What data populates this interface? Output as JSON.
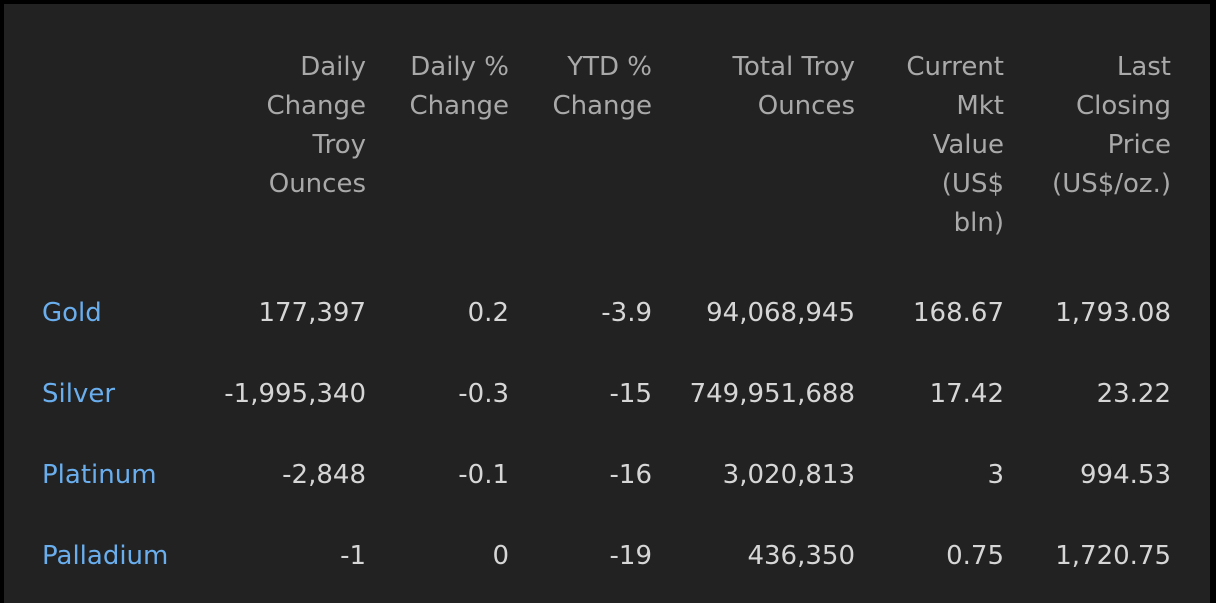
{
  "table": {
    "headers": [
      "",
      "Daily\nChange\nTroy\nOunces",
      "Daily %\nChange",
      "YTD %\nChange",
      "Total Troy\nOunces",
      "Current\nMkt\nValue\n(US$\nbln)",
      "Last\nClosing\nPrice\n(US$/oz.)"
    ],
    "rows": [
      {
        "metal": "Gold",
        "daily_change_oz": "177,397",
        "daily_pct": "0.2",
        "ytd_pct": "-3.9",
        "total_oz": "94,068,945",
        "mkt_value": "168.67",
        "last_price": "1,793.08"
      },
      {
        "metal": "Silver",
        "daily_change_oz": "-1,995,340",
        "daily_pct": "-0.3",
        "ytd_pct": "-15",
        "total_oz": "749,951,688",
        "mkt_value": "17.42",
        "last_price": "23.22"
      },
      {
        "metal": "Platinum",
        "daily_change_oz": "-2,848",
        "daily_pct": "-0.1",
        "ytd_pct": "-16",
        "total_oz": "3,020,813",
        "mkt_value": "3",
        "last_price": "994.53"
      },
      {
        "metal": "Palladium",
        "daily_change_oz": "-1",
        "daily_pct": "0",
        "ytd_pct": "-19",
        "total_oz": "436,350",
        "mkt_value": "0.75",
        "last_price": "1,720.75"
      }
    ]
  },
  "colors": {
    "background": "#222222",
    "frame": "#000000",
    "header_text": "#a9a9a9",
    "cell_text": "#d6d6d6",
    "metal_link": "#6aaeee"
  }
}
